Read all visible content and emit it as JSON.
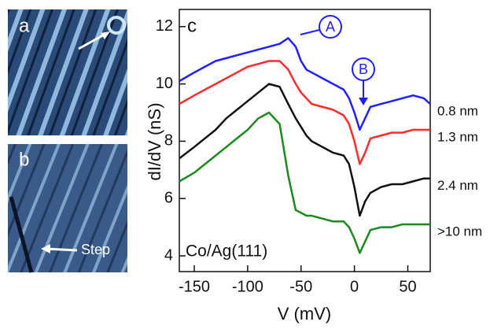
{
  "images": [
    {
      "label": "a"
    },
    {
      "label": "b",
      "annotation": "Step"
    }
  ],
  "chart_data": {
    "type": "line",
    "panel_label": "c",
    "x_label": "V (mV)",
    "y_label": "dI/dV (nS)",
    "annotations": [
      "A",
      "B",
      "Co/Ag(111)"
    ],
    "x": [
      -164,
      -150,
      -140,
      -130,
      -120,
      -110,
      -100,
      -90,
      -80,
      -70,
      -62,
      -55,
      -50,
      -45,
      -40,
      -30,
      -20,
      -10,
      -5,
      0,
      5,
      10,
      15,
      25,
      35,
      45,
      55,
      65,
      71
    ],
    "xlim": [
      -164,
      71
    ],
    "xticks": [
      -150,
      -100,
      -50,
      0,
      50
    ],
    "ylim": [
      3.45,
      12.6
    ],
    "yticks": [
      4,
      6,
      8,
      10,
      12
    ],
    "series": [
      {
        "name": "0.8 nm",
        "color": "#1f1fff",
        "values": [
          10.1,
          10.4,
          10.6,
          10.8,
          10.9,
          11.0,
          11.1,
          11.2,
          11.3,
          11.4,
          11.6,
          11.3,
          10.8,
          10.5,
          10.4,
          10.2,
          10.0,
          9.8,
          9.5,
          9.0,
          8.4,
          8.8,
          9.2,
          9.3,
          9.4,
          9.5,
          9.6,
          9.5,
          9.3
        ]
      },
      {
        "name": "1.3 nm",
        "color": "#ff2a2a",
        "values": [
          9.3,
          9.6,
          9.8,
          10.0,
          10.2,
          10.4,
          10.6,
          10.7,
          10.8,
          10.8,
          10.5,
          10.0,
          9.7,
          9.5,
          9.3,
          9.2,
          9.1,
          8.9,
          8.6,
          8.0,
          7.2,
          7.6,
          8.1,
          8.2,
          8.3,
          8.3,
          8.4,
          8.4,
          8.4
        ]
      },
      {
        "name": "2.4 nm",
        "color": "#111111",
        "values": [
          7.4,
          7.8,
          8.1,
          8.4,
          8.8,
          9.1,
          9.4,
          9.7,
          10.0,
          9.9,
          9.3,
          8.8,
          8.5,
          8.2,
          8.0,
          7.8,
          7.6,
          7.5,
          7.2,
          6.4,
          5.4,
          5.9,
          6.2,
          6.4,
          6.5,
          6.5,
          6.6,
          6.7,
          6.7
        ]
      },
      {
        "name": ">10 nm",
        "color": "#1a8a1a",
        "values": [
          6.6,
          6.9,
          7.2,
          7.5,
          7.8,
          8.1,
          8.4,
          8.8,
          9.0,
          8.6,
          6.8,
          5.6,
          5.5,
          5.4,
          5.4,
          5.3,
          5.2,
          5.2,
          5.0,
          4.6,
          4.1,
          4.5,
          4.9,
          5.0,
          5.0,
          5.1,
          5.1,
          5.1,
          5.1
        ]
      }
    ]
  }
}
